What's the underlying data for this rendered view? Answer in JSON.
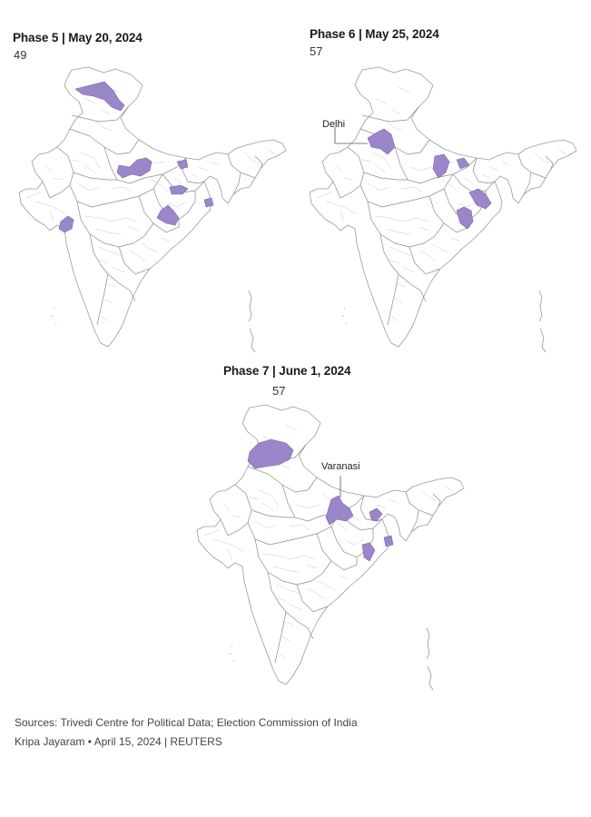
{
  "phases": [
    {
      "title": "Phase 5 | May 20, 2024",
      "count": "49"
    },
    {
      "title": "Phase 6 | May 25, 2024",
      "count": "57",
      "callout": "Delhi"
    },
    {
      "title": "Phase 7 | June 1, 2024",
      "count": "57",
      "callout": "Varanasi"
    }
  ],
  "colors": {
    "highlight": "#9b86c9",
    "border": "#9a9a9a",
    "background": "#ffffff"
  },
  "footer": {
    "sources": "Sources: Trivedi Centre for Political Data; Election Commission of India",
    "credit": "Kripa Jayaram • April 15, 2024 | REUTERS"
  }
}
